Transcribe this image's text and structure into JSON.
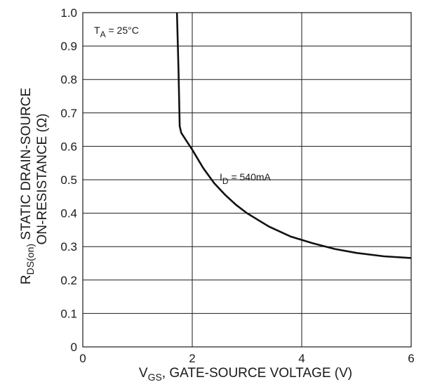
{
  "chart_data": {
    "type": "line",
    "xlabel": {
      "main": "V",
      "sub": "GS",
      "rest": ", GATE-SOURCE VOLTAGE (V)"
    },
    "ylabel": {
      "line1_main": "R",
      "line1_sub": "DS(on)",
      "line1_rest": " STATIC DRAIN-SOURCE",
      "line2": "ON-RESISTANCE (Ω)"
    },
    "xlim": [
      0,
      6
    ],
    "ylim": [
      0,
      1.0
    ],
    "x_ticks": [
      0,
      2,
      4,
      6
    ],
    "x_tick_labels": [
      "0",
      "2",
      "4",
      "6"
    ],
    "y_ticks": [
      0,
      0.1,
      0.2,
      0.3,
      0.4,
      0.5,
      0.6,
      0.7,
      0.8,
      0.9,
      1.0
    ],
    "y_tick_labels": [
      "0",
      "0.1",
      "0.2",
      "0.3",
      "0.4",
      "0.5",
      "0.6",
      "0.7",
      "0.8",
      "0.9",
      "1.0"
    ],
    "x_grid": [
      2,
      4
    ],
    "y_grid": [
      0.1,
      0.2,
      0.3,
      0.4,
      0.5,
      0.6,
      0.7,
      0.8,
      0.9
    ],
    "condition": {
      "main": "T",
      "sub": "A",
      "rest": " = 25°C"
    },
    "series": [
      {
        "label": {
          "main": "I",
          "sub": "D",
          "rest": " = 540mA"
        },
        "x": [
          1.72,
          1.75,
          1.77,
          1.8,
          1.9,
          2.0,
          2.2,
          2.4,
          2.6,
          2.8,
          3.0,
          3.4,
          3.8,
          4.2,
          4.6,
          5.0,
          5.5,
          6.0
        ],
        "y": [
          1.0,
          0.82,
          0.66,
          0.64,
          0.615,
          0.59,
          0.535,
          0.49,
          0.455,
          0.425,
          0.4,
          0.36,
          0.33,
          0.31,
          0.293,
          0.281,
          0.271,
          0.266
        ]
      }
    ]
  }
}
